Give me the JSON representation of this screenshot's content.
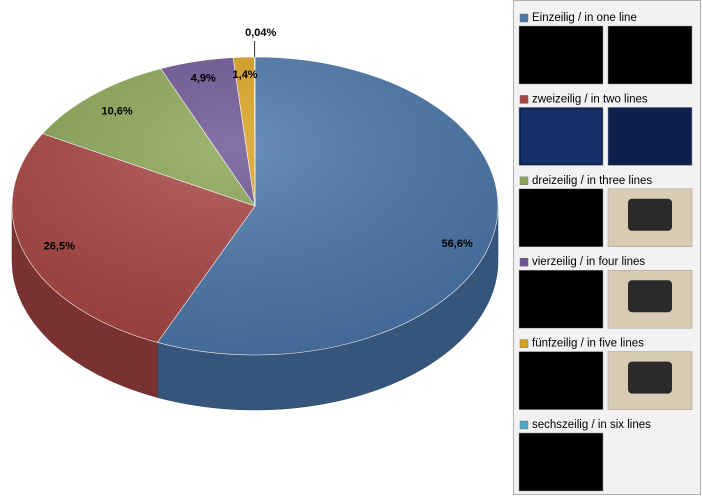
{
  "chart_data": {
    "type": "pie",
    "categories": [
      "Einzeilig / in one line",
      "zweizeilig / in two lines",
      "dreizeilig / in three lines",
      "vierzeilig / in four lines",
      "fünfzeilig / in five lines",
      "sechszeilig / in six lines"
    ],
    "values": [
      56.6,
      26.5,
      10.6,
      4.9,
      1.4,
      0.04
    ],
    "value_labels": [
      "56,6%",
      "26,5%",
      "10,6%",
      "4,9%",
      "1,4%",
      "0,04%"
    ],
    "colors": [
      "#4a76a9",
      "#a84543",
      "#8aa653",
      "#6c5494",
      "#d9a21c",
      "#4aa9c4"
    ],
    "legend": "right"
  }
}
